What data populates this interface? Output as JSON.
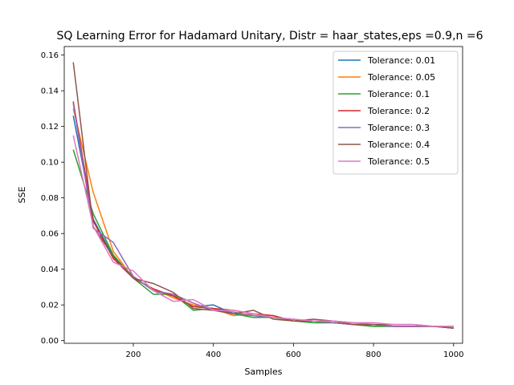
{
  "chart_data": {
    "type": "line",
    "title": "SQ Learning Error for Hadamard Unitary, Distr = haar_states,eps =0.9,n =6",
    "xlabel": "Samples",
    "ylabel": "SSE",
    "xlim": [
      27.5,
      1022.5
    ],
    "ylim": [
      -0.0015,
      0.1648
    ],
    "xticks": [
      200,
      400,
      600,
      800,
      1000
    ],
    "yticks": [
      0.0,
      0.02,
      0.04,
      0.06,
      0.08,
      0.1,
      0.12,
      0.14,
      0.16
    ],
    "ytick_labels": [
      "0.00",
      "0.02",
      "0.04",
      "0.06",
      "0.08",
      "0.10",
      "0.12",
      "0.14",
      "0.16"
    ],
    "grid": false,
    "legend_position": "top-right",
    "x": [
      50,
      100,
      150,
      200,
      250,
      300,
      350,
      400,
      450,
      500,
      550,
      600,
      650,
      700,
      750,
      800,
      850,
      900,
      950,
      1000
    ],
    "series": [
      {
        "name": "Tolerance: 0.01",
        "color": "#1f77b4",
        "values": [
          0.126,
          0.068,
          0.047,
          0.036,
          0.028,
          0.025,
          0.019,
          0.02,
          0.015,
          0.014,
          0.013,
          0.012,
          0.01,
          0.01,
          0.009,
          0.008,
          0.008,
          0.008,
          0.008,
          0.007
        ]
      },
      {
        "name": "Tolerance: 0.05",
        "color": "#ff7f0e",
        "values": [
          0.13,
          0.083,
          0.05,
          0.035,
          0.029,
          0.024,
          0.02,
          0.018,
          0.014,
          0.015,
          0.014,
          0.011,
          0.011,
          0.011,
          0.01,
          0.009,
          0.008,
          0.008,
          0.008,
          0.008
        ]
      },
      {
        "name": "Tolerance: 0.1",
        "color": "#2ca02c",
        "values": [
          0.107,
          0.071,
          0.048,
          0.035,
          0.026,
          0.026,
          0.017,
          0.018,
          0.015,
          0.013,
          0.013,
          0.011,
          0.01,
          0.01,
          0.009,
          0.008,
          0.008,
          0.008,
          0.008,
          0.007
        ]
      },
      {
        "name": "Tolerance: 0.2",
        "color": "#d62728",
        "values": [
          0.134,
          0.067,
          0.046,
          0.035,
          0.029,
          0.025,
          0.019,
          0.018,
          0.017,
          0.015,
          0.014,
          0.011,
          0.011,
          0.01,
          0.009,
          0.009,
          0.008,
          0.008,
          0.008,
          0.008
        ]
      },
      {
        "name": "Tolerance: 0.3",
        "color": "#9467bd",
        "values": [
          0.133,
          0.063,
          0.055,
          0.036,
          0.028,
          0.026,
          0.021,
          0.017,
          0.016,
          0.014,
          0.013,
          0.012,
          0.011,
          0.01,
          0.009,
          0.009,
          0.008,
          0.008,
          0.008,
          0.008
        ]
      },
      {
        "name": "Tolerance: 0.4",
        "color": "#8c564b",
        "values": [
          0.156,
          0.064,
          0.047,
          0.035,
          0.032,
          0.027,
          0.018,
          0.017,
          0.015,
          0.017,
          0.012,
          0.011,
          0.012,
          0.011,
          0.009,
          0.009,
          0.009,
          0.009,
          0.008,
          0.007
        ]
      },
      {
        "name": "Tolerance: 0.5",
        "color": "#e377c2",
        "values": [
          0.115,
          0.064,
          0.044,
          0.039,
          0.028,
          0.022,
          0.023,
          0.017,
          0.017,
          0.015,
          0.013,
          0.012,
          0.011,
          0.011,
          0.01,
          0.01,
          0.009,
          0.009,
          0.008,
          0.008
        ]
      }
    ]
  }
}
